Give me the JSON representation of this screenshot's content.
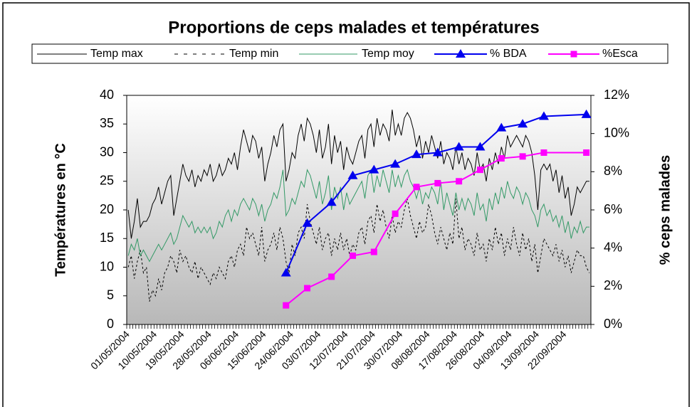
{
  "chart_data": {
    "type": "line",
    "title": "Proportions de ceps malades et températures",
    "ylabel": "Températures en °C",
    "y2label": "% ceps malades",
    "ylim": [
      0,
      40
    ],
    "yticks": [
      0,
      5,
      10,
      15,
      20,
      25,
      30,
      35,
      40
    ],
    "y2lim": [
      0,
      12
    ],
    "y2ticks": [
      {
        "value": 0,
        "label": "0%"
      },
      {
        "value": 2,
        "label": "2%"
      },
      {
        "value": 4,
        "label": "4%"
      },
      {
        "value": 6,
        "label": "6%"
      },
      {
        "value": 8,
        "label": "8%"
      },
      {
        "value": 10,
        "label": "10%"
      },
      {
        "value": 12,
        "label": "12%"
      }
    ],
    "grid": false,
    "legend": "top",
    "connect_gaps": true,
    "categories": [
      "01/05/2004",
      null,
      null,
      null,
      null,
      null,
      null,
      null,
      null,
      "10/05/2004",
      null,
      null,
      null,
      null,
      null,
      null,
      null,
      null,
      "19/05/2004",
      null,
      null,
      null,
      null,
      null,
      null,
      null,
      null,
      "28/05/2004",
      null,
      null,
      null,
      null,
      null,
      null,
      null,
      null,
      "06/06/2004",
      null,
      null,
      null,
      null,
      null,
      null,
      null,
      null,
      "15/06/2004",
      null,
      null,
      null,
      null,
      null,
      null,
      null,
      null,
      "24/06/2004",
      null,
      null,
      null,
      null,
      null,
      null,
      null,
      null,
      "03/07/2004",
      null,
      null,
      null,
      null,
      null,
      null,
      null,
      null,
      "12/07/2004",
      null,
      null,
      null,
      null,
      null,
      null,
      null,
      null,
      "21/07/2004",
      null,
      null,
      null,
      null,
      null,
      null,
      null,
      null,
      "30/07/2004",
      null,
      null,
      null,
      null,
      null,
      null,
      null,
      null,
      "08/08/2004",
      null,
      null,
      null,
      null,
      null,
      null,
      null,
      null,
      "17/08/2004",
      null,
      null,
      null,
      null,
      null,
      null,
      null,
      null,
      "26/08/2004",
      null,
      null,
      null,
      null,
      null,
      null,
      null,
      null,
      "04/09/2004",
      null,
      null,
      null,
      null,
      null,
      null,
      null,
      null,
      "13/09/2004",
      null,
      null,
      null,
      null,
      null,
      null,
      null,
      null,
      "22/09/2004",
      null,
      null,
      null,
      null,
      null,
      null,
      null,
      null
    ],
    "series": [
      {
        "name": "Temp max",
        "color": "#000000",
        "dash": false,
        "values": [
          20,
          15,
          18,
          22,
          17,
          18,
          18,
          19,
          21,
          22,
          24,
          21,
          23,
          25,
          26,
          19,
          22,
          25,
          28,
          26,
          25,
          27,
          24,
          26,
          25,
          27,
          26,
          28,
          25,
          26,
          28,
          26,
          27,
          29,
          28,
          30,
          27,
          31,
          34,
          32,
          30,
          33,
          32,
          29,
          31,
          25,
          28,
          30,
          33,
          31,
          34,
          35,
          25,
          27,
          30,
          29,
          33,
          35,
          32,
          36,
          35,
          33,
          30,
          34,
          29,
          31,
          35,
          28,
          33,
          30,
          32,
          27,
          31,
          29,
          28,
          30,
          32,
          33,
          29,
          34,
          35,
          31,
          36,
          33,
          35,
          34,
          32,
          37.5,
          33,
          35,
          33,
          36,
          37,
          36,
          34,
          31,
          33,
          29,
          32,
          30,
          33,
          31,
          29,
          32,
          28,
          30,
          29,
          27,
          31,
          28,
          30,
          27,
          29,
          28,
          26,
          30,
          27,
          28,
          25,
          29,
          27,
          30,
          28,
          31,
          29,
          33,
          31,
          32,
          33,
          32,
          31,
          33,
          32,
          30,
          26,
          20,
          27,
          28,
          27,
          28,
          25,
          27,
          23,
          26,
          22,
          24,
          19,
          21,
          24,
          23,
          24,
          25,
          25
        ]
      },
      {
        "name": "Temp min",
        "color": "#000000",
        "dash": true,
        "values": [
          10,
          12,
          8,
          11,
          13,
          9,
          10,
          4,
          6,
          5,
          8,
          6,
          9,
          10,
          12,
          11,
          9,
          13,
          11,
          12,
          10,
          9,
          11,
          8,
          10,
          9,
          8,
          7,
          9,
          8,
          10,
          9,
          8,
          11,
          12,
          10,
          13,
          14,
          12,
          17,
          15,
          16,
          14,
          12,
          17,
          11,
          13,
          14,
          16,
          13,
          17,
          15,
          11,
          9,
          14,
          12,
          16,
          17,
          15,
          21,
          18,
          16,
          14,
          17,
          13,
          15,
          16,
          12,
          15,
          13,
          16,
          13,
          15,
          12,
          14,
          13,
          16,
          17,
          14,
          18,
          19,
          16,
          21,
          18,
          20,
          17,
          15,
          19,
          16,
          18,
          17,
          20,
          22,
          19,
          17,
          15,
          18,
          16,
          17,
          21,
          19,
          16,
          14,
          17,
          15,
          13,
          16,
          14,
          22,
          15,
          17,
          13,
          15,
          14,
          12,
          16,
          13,
          14,
          11,
          15,
          13,
          17,
          14,
          16,
          12,
          15,
          13,
          17,
          14,
          12,
          16,
          13,
          15,
          11,
          14,
          9,
          12,
          15,
          14,
          13,
          12,
          14,
          11,
          13,
          10,
          12,
          9,
          11,
          13,
          12,
          12,
          10,
          9
        ]
      },
      {
        "name": "Temp moy",
        "color": "#339966",
        "dash": false,
        "values": [
          12,
          14,
          13,
          15,
          12,
          13,
          12,
          11,
          12,
          13,
          14,
          13,
          14,
          15,
          16,
          14,
          15,
          17,
          19,
          18,
          17,
          18,
          16,
          17,
          16,
          17,
          16,
          17,
          15,
          16,
          18,
          17,
          19,
          20,
          18,
          20,
          19,
          21,
          22,
          21,
          20,
          22,
          21,
          19,
          21,
          18,
          20,
          21,
          23,
          22,
          24,
          27,
          19,
          20,
          22,
          21,
          23,
          25,
          24,
          27,
          26,
          24,
          22,
          25,
          21,
          23,
          26,
          20,
          24,
          22,
          24,
          20,
          23,
          21,
          22,
          23,
          24,
          25,
          22,
          26,
          27,
          23,
          26,
          24,
          27,
          25,
          23,
          27,
          24,
          26,
          24,
          26,
          27,
          25,
          24,
          22,
          24,
          21,
          23,
          22,
          24,
          23,
          21,
          25,
          20,
          23,
          21,
          19,
          23,
          20,
          22,
          20,
          22,
          21,
          19,
          23,
          20,
          21,
          18,
          22,
          20,
          23,
          21,
          24,
          22,
          25,
          23,
          22,
          24,
          23,
          21,
          23,
          22,
          20,
          19,
          17,
          20,
          21,
          19,
          20,
          18,
          19,
          17,
          19,
          16,
          18,
          15,
          17,
          16,
          18,
          16,
          17,
          17
        ]
      },
      {
        "name": "% BDA",
        "color": "#0000ee",
        "axis": "y2",
        "marker": "triangle",
        "values": [
          null,
          null,
          null,
          null,
          null,
          null,
          null,
          null,
          null,
          null,
          null,
          null,
          null,
          null,
          null,
          null,
          null,
          null,
          null,
          null,
          null,
          null,
          null,
          null,
          null,
          null,
          null,
          null,
          null,
          null,
          null,
          null,
          null,
          null,
          null,
          null,
          null,
          null,
          null,
          null,
          null,
          null,
          null,
          null,
          null,
          null,
          null,
          null,
          null,
          null,
          null,
          null,
          2.7,
          null,
          null,
          null,
          null,
          null,
          null,
          5.3,
          null,
          null,
          null,
          null,
          null,
          null,
          null,
          6.4,
          null,
          null,
          null,
          null,
          null,
          null,
          7.8,
          null,
          null,
          null,
          null,
          null,
          null,
          8.1,
          null,
          null,
          null,
          null,
          null,
          null,
          8.4,
          null,
          null,
          null,
          null,
          null,
          null,
          8.9,
          null,
          null,
          null,
          null,
          null,
          null,
          9.0,
          null,
          null,
          null,
          null,
          null,
          null,
          9.3,
          null,
          null,
          null,
          null,
          null,
          null,
          9.3,
          null,
          null,
          null,
          null,
          null,
          null,
          10.3,
          null,
          null,
          null,
          null,
          null,
          null,
          10.5,
          null,
          null,
          null,
          null,
          null,
          null,
          10.9,
          null,
          null,
          null,
          null,
          null,
          null,
          null,
          null,
          null,
          null,
          null,
          null,
          null,
          11.0,
          null
        ]
      },
      {
        "name": "%Esca",
        "color": "#ff00ff",
        "axis": "y2",
        "marker": "square",
        "values": [
          null,
          null,
          null,
          null,
          null,
          null,
          null,
          null,
          null,
          null,
          null,
          null,
          null,
          null,
          null,
          null,
          null,
          null,
          null,
          null,
          null,
          null,
          null,
          null,
          null,
          null,
          null,
          null,
          null,
          null,
          null,
          null,
          null,
          null,
          null,
          null,
          null,
          null,
          null,
          null,
          null,
          null,
          null,
          null,
          null,
          null,
          null,
          null,
          null,
          null,
          null,
          null,
          1.0,
          null,
          null,
          null,
          null,
          null,
          null,
          1.9,
          null,
          null,
          null,
          null,
          null,
          null,
          null,
          2.5,
          null,
          null,
          null,
          null,
          null,
          null,
          3.6,
          null,
          null,
          null,
          null,
          null,
          null,
          3.8,
          null,
          null,
          null,
          null,
          null,
          null,
          5.8,
          null,
          null,
          null,
          null,
          null,
          null,
          7.2,
          null,
          null,
          null,
          null,
          null,
          null,
          7.4,
          null,
          null,
          null,
          null,
          null,
          null,
          7.5,
          null,
          null,
          null,
          null,
          null,
          null,
          8.1,
          null,
          null,
          null,
          null,
          null,
          null,
          8.7,
          null,
          null,
          null,
          null,
          null,
          null,
          8.8,
          null,
          null,
          null,
          null,
          null,
          null,
          9.0,
          null,
          null,
          null,
          null,
          null,
          null,
          null,
          null,
          null,
          null,
          null,
          null,
          null,
          9.0,
          null
        ]
      }
    ]
  }
}
